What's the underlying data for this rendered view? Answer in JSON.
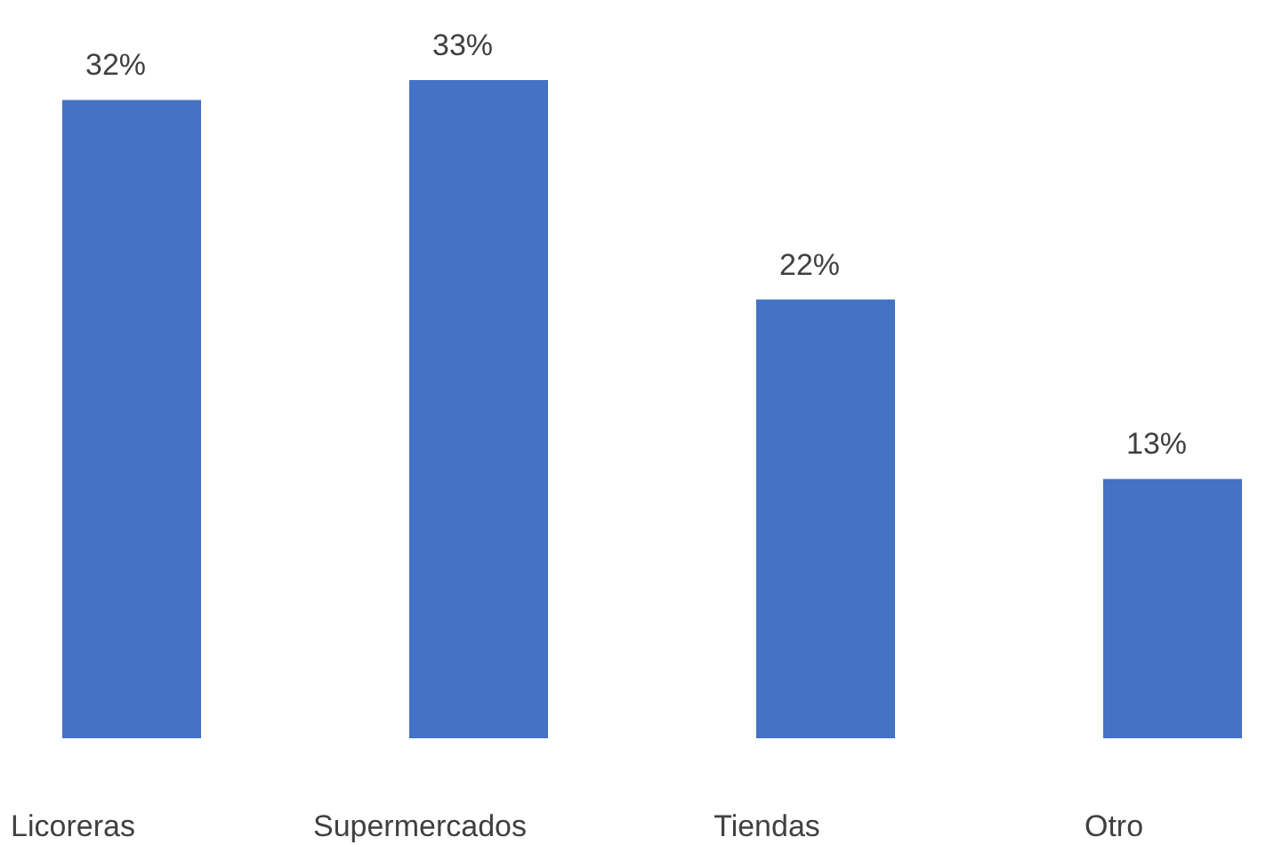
{
  "chart_data": {
    "type": "bar",
    "categories": [
      "Licoreras",
      "Supermercados",
      "Tiendas",
      "Otro"
    ],
    "values": [
      32,
      33,
      22,
      13
    ],
    "value_labels": [
      "32%",
      "33%",
      "22%",
      "13%"
    ],
    "color": "#4472c4"
  }
}
